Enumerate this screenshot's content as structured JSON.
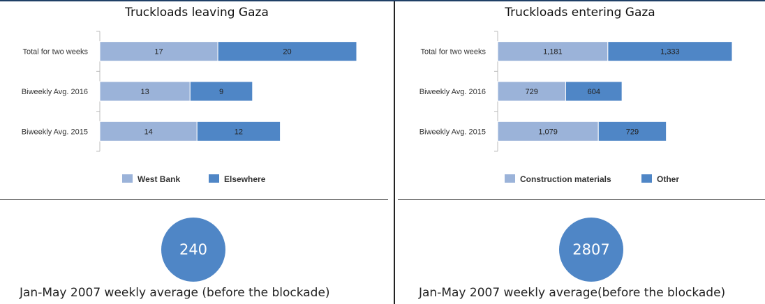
{
  "colors": {
    "west_bank": "#9bb3d9",
    "elsewhere": "#4f86c6",
    "circle": "#4f86c6"
  },
  "chart_data": [
    {
      "type": "bar",
      "orientation": "horizontal",
      "stacked": true,
      "title": "Truckloads leaving Gaza",
      "categories": [
        "Total for two weeks",
        "Biweekly Avg. 2016",
        "Biweekly Avg. 2015"
      ],
      "series": [
        {
          "name": "West Bank",
          "values": [
            17,
            13,
            14
          ],
          "labels": [
            "17",
            "13",
            "14"
          ]
        },
        {
          "name": "Elsewhere",
          "values": [
            20,
            9,
            12
          ],
          "labels": [
            "20",
            "9",
            "12"
          ]
        }
      ],
      "xlim": [
        0,
        40
      ],
      "legend": "bottom"
    },
    {
      "type": "bar",
      "orientation": "horizontal",
      "stacked": true,
      "title": "Truckloads entering Gaza",
      "categories": [
        "Total for two weeks",
        "Biweekly Avg. 2016",
        "Biweekly Avg. 2015"
      ],
      "series": [
        {
          "name": "Construction materials",
          "values": [
            1181,
            729,
            1079
          ],
          "labels": [
            "1,181",
            "729",
            "1,079"
          ]
        },
        {
          "name": "Other",
          "values": [
            1333,
            604,
            729
          ],
          "labels": [
            "1,333",
            "604",
            "729"
          ]
        }
      ],
      "xlim": [
        0,
        2800
      ],
      "legend": "bottom"
    }
  ],
  "left_highlight": {
    "value": "240",
    "caption": "Jan-May 2007 weekly average (before the blockade)"
  },
  "right_highlight": {
    "value": "2807",
    "caption": "Jan-May 2007 weekly average(before the blockade)"
  }
}
